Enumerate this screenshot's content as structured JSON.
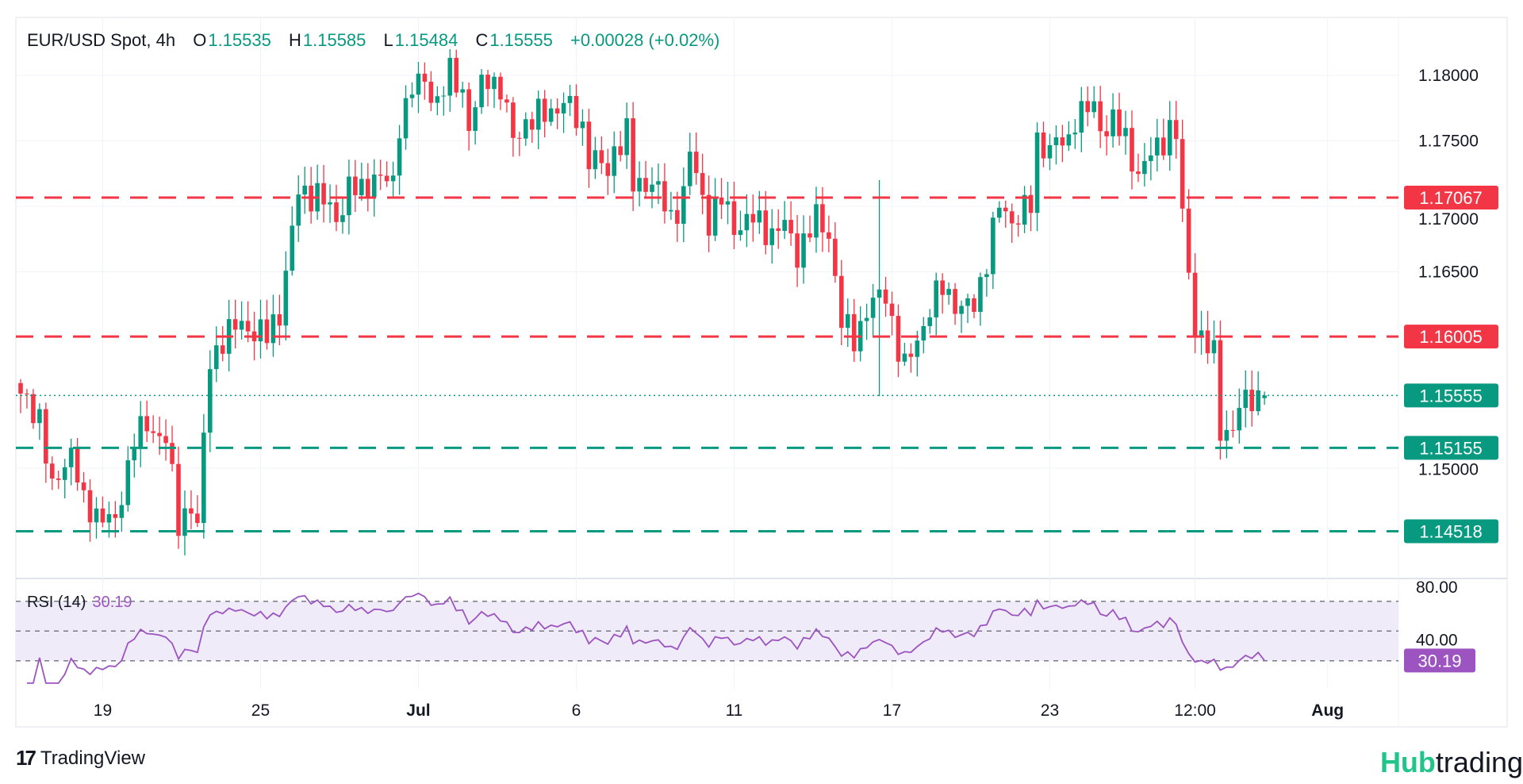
{
  "header": {
    "symbol": "EUR/USD Spot, 4h",
    "o_label": "O",
    "o_value": "1.15535",
    "h_label": "H",
    "h_value": "1.15585",
    "l_label": "L",
    "l_value": "1.15484",
    "c_label": "C",
    "c_value": "1.15555",
    "change": "+0.00028 (+0.02%)"
  },
  "rsi": {
    "label": "RSI (14)",
    "value": "30.19"
  },
  "branding": {
    "tradingview": "TradingView",
    "hub_a": "Hub",
    "hub_b": "trading"
  },
  "colors": {
    "up": "#089981",
    "down": "#f23645",
    "rsi": "#9c54c0",
    "rsi_band": "#efebf8",
    "grid": "#f0f3fa"
  },
  "chart_data": {
    "type": "candlestick",
    "title": "EUR/USD Spot, 4h",
    "bars": 198,
    "ylim": [
      1.1405,
      1.1835
    ],
    "y_ticks": [
      "1.18000",
      "1.17500",
      "1.17000",
      "1.16500",
      "1.15000"
    ],
    "y_tick_values": [
      1.18,
      1.175,
      1.17,
      1.165,
      1.15
    ],
    "x_ticks": [
      {
        "label": "19",
        "bar": 13
      },
      {
        "label": "25",
        "bar": 38
      },
      {
        "label": "Jul",
        "bar": 63
      },
      {
        "label": "6",
        "bar": 88
      },
      {
        "label": "11",
        "bar": 113
      },
      {
        "label": "17",
        "bar": 138
      },
      {
        "label": "23",
        "bar": 163
      },
      {
        "label": "12:00",
        "bar": 186
      },
      {
        "label": "Aug",
        "bar": 207
      }
    ],
    "close_anchors": [
      [
        0,
        1.1557
      ],
      [
        3,
        1.154
      ],
      [
        5,
        1.148
      ],
      [
        6,
        1.1495
      ],
      [
        8,
        1.1515
      ],
      [
        10,
        1.147
      ],
      [
        13,
        1.1465
      ],
      [
        15,
        1.1455
      ],
      [
        16,
        1.148
      ],
      [
        18,
        1.1525
      ],
      [
        20,
        1.153
      ],
      [
        23,
        1.1525
      ],
      [
        25,
        1.1455
      ],
      [
        27,
        1.1475
      ],
      [
        28,
        1.1455
      ],
      [
        29,
        1.152
      ],
      [
        30,
        1.158
      ],
      [
        32,
        1.16
      ],
      [
        35,
        1.161
      ],
      [
        39,
        1.16
      ],
      [
        41,
        1.162
      ],
      [
        43,
        1.168
      ],
      [
        44,
        1.171
      ],
      [
        47,
        1.171
      ],
      [
        50,
        1.169
      ],
      [
        52,
        1.1715
      ],
      [
        54,
        1.171
      ],
      [
        56,
        1.1725
      ],
      [
        59,
        1.1715
      ],
      [
        60,
        1.1765
      ],
      [
        62,
        1.179
      ],
      [
        64,
        1.1795
      ],
      [
        66,
        1.178
      ],
      [
        68,
        1.18
      ],
      [
        70,
        1.179
      ],
      [
        71,
        1.176
      ],
      [
        73,
        1.179
      ],
      [
        74,
        1.18
      ],
      [
        76,
        1.179
      ],
      [
        78,
        1.175
      ],
      [
        80,
        1.1765
      ],
      [
        83,
        1.177
      ],
      [
        86,
        1.178
      ],
      [
        89,
        1.176
      ],
      [
        90,
        1.174
      ],
      [
        93,
        1.1725
      ],
      [
        94,
        1.1745
      ],
      [
        96,
        1.1755
      ],
      [
        97,
        1.1715
      ],
      [
        100,
        1.172
      ],
      [
        103,
        1.169
      ],
      [
        105,
        1.171
      ],
      [
        106,
        1.174
      ],
      [
        109,
        1.169
      ],
      [
        111,
        1.1705
      ],
      [
        113,
        1.1685
      ],
      [
        116,
        1.169
      ],
      [
        119,
        1.168
      ],
      [
        121,
        1.1685
      ],
      [
        123,
        1.1665
      ],
      [
        126,
        1.169
      ],
      [
        128,
        1.168
      ],
      [
        130,
        1.161
      ],
      [
        132,
        1.16
      ],
      [
        134,
        1.162
      ],
      [
        136,
        1.163
      ],
      [
        137,
        1.1635
      ],
      [
        139,
        1.159
      ],
      [
        140,
        1.1575
      ],
      [
        142,
        1.16
      ],
      [
        144,
        1.162
      ],
      [
        146,
        1.164
      ],
      [
        149,
        1.162
      ],
      [
        151,
        1.1625
      ],
      [
        153,
        1.166
      ],
      [
        155,
        1.17
      ],
      [
        157,
        1.169
      ],
      [
        160,
        1.17
      ],
      [
        161,
        1.175
      ],
      [
        163,
        1.1745
      ],
      [
        166,
        1.175
      ],
      [
        167,
        1.177
      ],
      [
        170,
        1.1775
      ],
      [
        171,
        1.176
      ],
      [
        173,
        1.1765
      ],
      [
        175,
        1.175
      ],
      [
        177,
        1.1725
      ],
      [
        180,
        1.1745
      ],
      [
        182,
        1.176
      ],
      [
        183,
        1.1755
      ],
      [
        184,
        1.169
      ],
      [
        186,
        1.161
      ],
      [
        187,
        1.16
      ],
      [
        189,
        1.1585
      ],
      [
        190,
        1.153
      ],
      [
        192,
        1.153
      ],
      [
        193,
        1.1545
      ],
      [
        195,
        1.1555
      ],
      [
        197,
        1.15555
      ]
    ],
    "special_wicks": [
      {
        "bar": 136,
        "high": 1.172,
        "low": 1.1555
      }
    ],
    "last_candle": {
      "open": 1.15535,
      "high": 1.15585,
      "low": 1.15484,
      "close": 1.15555
    },
    "levels": [
      {
        "value": 1.17067,
        "label": "1.17067",
        "color": "#f23645",
        "style": "dashed"
      },
      {
        "value": 1.16005,
        "label": "1.16005",
        "color": "#f23645",
        "style": "dashed"
      },
      {
        "value": 1.15555,
        "label": "1.15555",
        "color": "#089981",
        "style": "dotted"
      },
      {
        "value": 1.15155,
        "label": "1.15155",
        "color": "#089981",
        "style": "dashed"
      },
      {
        "value": 1.14518,
        "label": "1.14518",
        "color": "#089981",
        "style": "dashed"
      }
    ],
    "rsi": {
      "period": 14,
      "last": 30.19,
      "ticks": [
        "80.00",
        "40.00"
      ],
      "tick_values": [
        80,
        40
      ],
      "bands": [
        70,
        50,
        30
      ]
    }
  }
}
